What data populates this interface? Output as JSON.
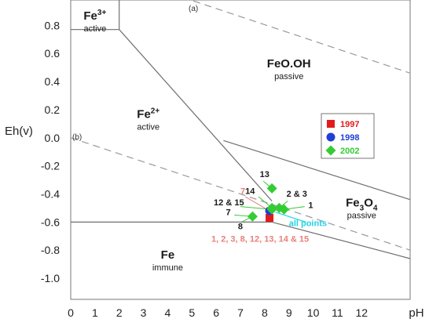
{
  "chart_data": {
    "type": "scatter",
    "xlabel": "pH",
    "ylabel": "Eh(v)",
    "xlim": [
      0,
      14
    ],
    "ylim": [
      -1.15,
      0.98
    ],
    "x_ticks": [
      "0",
      "1",
      "2",
      "3",
      "4",
      "5",
      "6",
      "7",
      "8",
      "9",
      "10",
      "11",
      "12"
    ],
    "y_ticks": [
      "0.8",
      "0.6",
      "0.4",
      "0.2",
      "0.0",
      "-0.2",
      "-0.4",
      "-0.6",
      "-0.8",
      "-1.0"
    ],
    "boundaries": [
      [
        [
          0,
          0.77
        ],
        [
          2,
          0.77
        ],
        [
          2,
          0.98
        ]
      ],
      [
        [
          2,
          0.77
        ],
        [
          8.3,
          -0.45
        ]
      ],
      [
        [
          0,
          -0.6
        ],
        [
          8.3,
          -0.6
        ]
      ],
      [
        [
          6.3,
          -0.02
        ],
        [
          14,
          -0.44
        ]
      ],
      [
        [
          8.3,
          -0.6
        ],
        [
          14,
          -0.86
        ]
      ]
    ],
    "water_lines": [
      {
        "label": "(a)",
        "points": [
          [
            4.6,
            1.0
          ],
          [
            14,
            0.46
          ]
        ]
      },
      {
        "label": "(b)",
        "points": [
          [
            0,
            0.0
          ],
          [
            14,
            -0.8
          ]
        ]
      }
    ],
    "regions": [
      {
        "name": "Fe",
        "sup": "3+",
        "sub": "",
        "state": "active",
        "x": 1.0,
        "y": 0.84
      },
      {
        "name": "FeO.OH",
        "sup": "",
        "sub": "",
        "state": "passive",
        "x": 9.0,
        "y": 0.5
      },
      {
        "name": "Fe",
        "sup": "2+",
        "sub": "",
        "state": "active",
        "x": 3.2,
        "y": 0.14
      },
      {
        "name": "Fe",
        "sup": "",
        "sub": "3",
        "state": "passive",
        "x": 12.0,
        "y": -0.49
      },
      {
        "name": "Fe",
        "sup": "",
        "sub": "",
        "state": "immune",
        "x": 4.0,
        "y": -0.86
      }
    ],
    "region_tail": [
      "O",
      "4"
    ],
    "series": [
      {
        "name": "1997",
        "color": "#e31a1c",
        "marker": "square",
        "points": [
          {
            "x": 8.2,
            "y": -0.57
          }
        ]
      },
      {
        "name": "1998",
        "color": "#1f3fd6",
        "marker": "circle",
        "points": [
          {
            "x": 8.2,
            "y": -0.52
          }
        ]
      },
      {
        "name": "2002",
        "color": "#33cc33",
        "marker": "diamond",
        "points": [
          {
            "x": 8.3,
            "y": -0.36
          },
          {
            "x": 8.3,
            "y": -0.5
          },
          {
            "x": 8.3,
            "y": -0.51
          },
          {
            "x": 8.6,
            "y": -0.5
          },
          {
            "x": 8.8,
            "y": -0.51
          },
          {
            "x": 7.5,
            "y": -0.56
          }
        ]
      }
    ],
    "annotations": [
      {
        "text": "13",
        "x": 7.8,
        "y": -0.28,
        "color": "#1a1a1a"
      },
      {
        "text": "7",
        "x": 7.0,
        "y": -0.4,
        "color": "#e8807a"
      },
      {
        "text": "14",
        "x": 7.2,
        "y": -0.4,
        "color": "#1a1a1a"
      },
      {
        "text": "2 & 3",
        "x": 8.9,
        "y": -0.42,
        "color": "#1a1a1a"
      },
      {
        "text": "12 & 15",
        "x": 5.9,
        "y": -0.48,
        "color": "#1a1a1a"
      },
      {
        "text": "1",
        "x": 9.8,
        "y": -0.5,
        "color": "#1a1a1a"
      },
      {
        "text": "7",
        "x": 6.4,
        "y": -0.55,
        "color": "#1a1a1a"
      },
      {
        "text": "8",
        "x": 6.9,
        "y": -0.65,
        "color": "#1a1a1a"
      },
      {
        "text": "1, 2, 3, 8, 12, 13, 14 & 15",
        "x": 5.8,
        "y": -0.74,
        "color": "#e8807a"
      },
      {
        "text": "all points",
        "x": 9.0,
        "y": -0.63,
        "color": "#22d3e6"
      }
    ],
    "legend": {
      "position": "right"
    }
  }
}
